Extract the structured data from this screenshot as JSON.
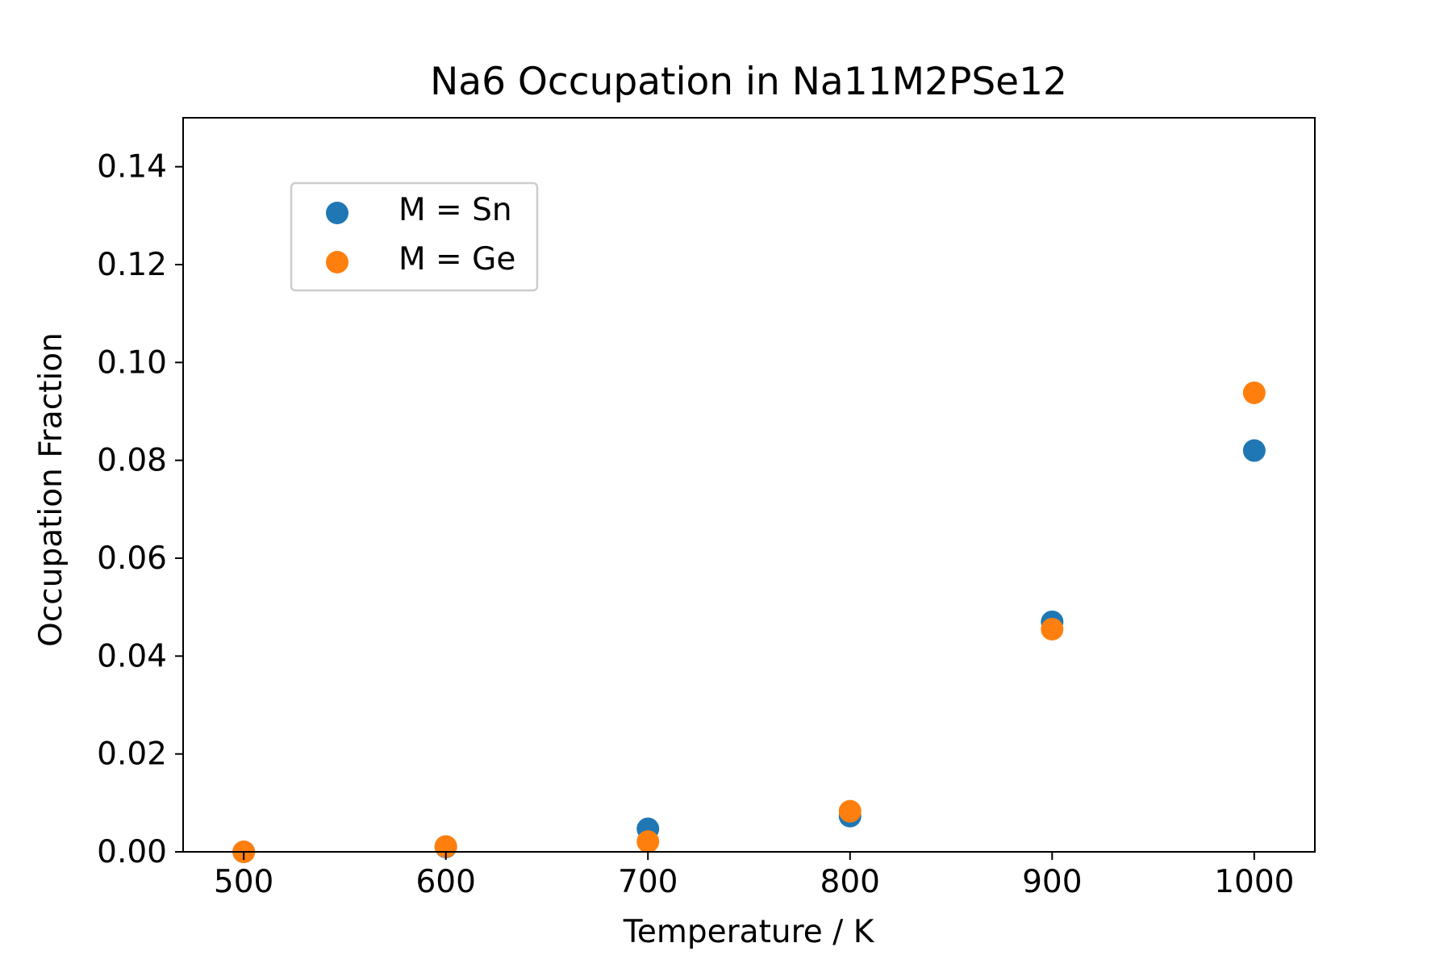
{
  "chart_data": {
    "type": "scatter",
    "title": "Na6 Occupation in Na11M2PSe12",
    "xlabel": "Temperature / K",
    "ylabel": "Occupation Fraction",
    "xlim": [
      470,
      1030
    ],
    "ylim": [
      0.0,
      0.15
    ],
    "xticks": [
      500,
      600,
      700,
      800,
      900,
      1000
    ],
    "xtick_labels": [
      "500",
      "600",
      "700",
      "800",
      "900",
      "1000"
    ],
    "yticks": [
      0.0,
      0.02,
      0.04,
      0.06,
      0.08,
      0.1,
      0.12,
      0.14
    ],
    "ytick_labels": [
      "0.00",
      "0.02",
      "0.04",
      "0.06",
      "0.08",
      "0.10",
      "0.12",
      "0.14"
    ],
    "grid": false,
    "legend_position": "upper-left",
    "series": [
      {
        "name": "M = Sn",
        "color": "#1f77b4",
        "x": [
          500,
          600,
          700,
          800,
          900,
          1000
        ],
        "y": [
          0.0,
          0.001,
          0.0047,
          0.0073,
          0.047,
          0.082
        ]
      },
      {
        "name": "M = Ge",
        "color": "#ff7f0e",
        "x": [
          500,
          600,
          700,
          800,
          900,
          1000
        ],
        "y": [
          0.0,
          0.0011,
          0.0021,
          0.0083,
          0.0455,
          0.0938
        ]
      }
    ]
  }
}
